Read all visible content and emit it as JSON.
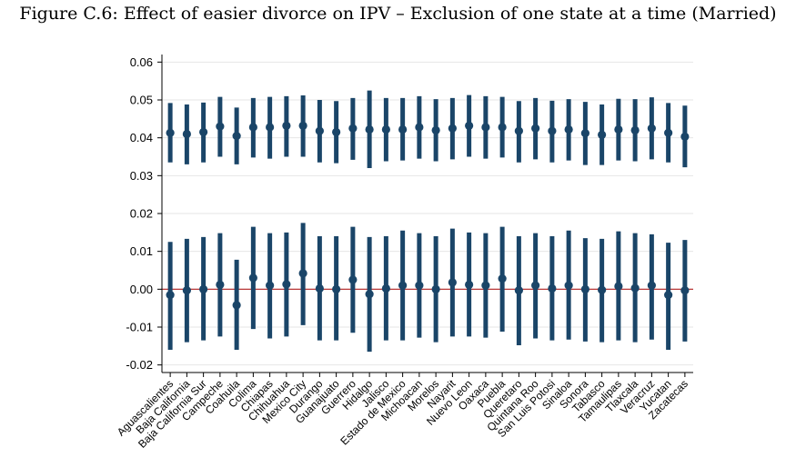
{
  "figure": {
    "title": "Figure C.6: Effect of easier divorce on IPV – Exclusion of one state at a time (Married)"
  },
  "chart_data": {
    "type": "errorbar",
    "title": "Figure C.6: Effect of easier divorce on IPV – Exclusion of one state at a time (Married)",
    "xlabel": "",
    "ylabel": "",
    "ylim": [
      -0.022,
      0.062
    ],
    "yticks": [
      -0.02,
      -0.01,
      0.0,
      0.01,
      0.02,
      0.03,
      0.04,
      0.05,
      0.06
    ],
    "ytick_labels": [
      "-0.02",
      "-0.01",
      "0.00",
      "0.01",
      "0.02",
      "0.03",
      "0.04",
      "0.05",
      "0.06"
    ],
    "reference_line": 0.0,
    "grid": true,
    "categories": [
      "Aguascalientes",
      "Baja California",
      "Baja California Sur",
      "Campeche",
      "Coahuila",
      "Colima",
      "Chiapas",
      "Chihuahua",
      "Mexico City",
      "Durango",
      "Guanajuato",
      "Guerrero",
      "Hidalgo",
      "Jalisco",
      "Estado de Mexico",
      "Michoacan",
      "Morelos",
      "Nayarit",
      "Nuevo Leon",
      "Oaxaca",
      "Puebla",
      "Queretaro",
      "Quintana Roo",
      "San Luis Potosi",
      "Sinaloa",
      "Sonora",
      "Tabasco",
      "Tamaulipas",
      "Tlaxcala",
      "Veracruz",
      "Yucatan",
      "Zacatecas"
    ],
    "series": [
      {
        "point": [
          0.0413,
          0.041,
          0.0415,
          0.043,
          0.0405,
          0.0428,
          0.0428,
          0.0432,
          0.0432,
          0.0418,
          0.0415,
          0.0425,
          0.0422,
          0.0422,
          0.0422,
          0.0428,
          0.042,
          0.0425,
          0.0432,
          0.0428,
          0.0428,
          0.0418,
          0.0425,
          0.0418,
          0.0422,
          0.0412,
          0.0408,
          0.0422,
          0.042,
          0.0425,
          0.0413,
          0.0403
        ],
        "lower": [
          0.0335,
          0.033,
          0.0335,
          0.035,
          0.033,
          0.0348,
          0.0345,
          0.035,
          0.035,
          0.0335,
          0.0333,
          0.0342,
          0.032,
          0.0338,
          0.034,
          0.0345,
          0.0338,
          0.0343,
          0.035,
          0.0345,
          0.0348,
          0.0335,
          0.0343,
          0.0335,
          0.034,
          0.0328,
          0.0328,
          0.034,
          0.0338,
          0.0343,
          0.0335,
          0.0322
        ],
        "upper": [
          0.0492,
          0.0488,
          0.0493,
          0.0508,
          0.048,
          0.0505,
          0.0508,
          0.051,
          0.0512,
          0.05,
          0.0497,
          0.0505,
          0.0525,
          0.0505,
          0.0505,
          0.051,
          0.0502,
          0.0505,
          0.0513,
          0.051,
          0.0508,
          0.0497,
          0.0505,
          0.0498,
          0.0502,
          0.0495,
          0.0488,
          0.0503,
          0.0502,
          0.0507,
          0.0492,
          0.0485
        ]
      },
      {
        "point": [
          -0.0015,
          -0.0003,
          0.0,
          0.0012,
          -0.0042,
          0.003,
          0.001,
          0.0013,
          0.0042,
          0.0002,
          0.0,
          0.0025,
          -0.0013,
          0.0002,
          0.001,
          0.001,
          0.0,
          0.0018,
          0.0012,
          0.001,
          0.0028,
          -0.0003,
          0.001,
          0.0002,
          0.001,
          0.0,
          -0.0002,
          0.0008,
          0.0003,
          0.001,
          -0.0015,
          -0.0003
        ],
        "lower": [
          -0.016,
          -0.014,
          -0.0135,
          -0.0125,
          -0.016,
          -0.0105,
          -0.013,
          -0.0125,
          -0.0095,
          -0.0135,
          -0.0135,
          -0.0115,
          -0.0165,
          -0.0135,
          -0.0135,
          -0.0128,
          -0.014,
          -0.0125,
          -0.0125,
          -0.0128,
          -0.0112,
          -0.0148,
          -0.013,
          -0.0135,
          -0.0133,
          -0.0138,
          -0.014,
          -0.0135,
          -0.014,
          -0.0133,
          -0.016,
          -0.0138
        ],
        "upper": [
          0.0125,
          0.0133,
          0.0138,
          0.0148,
          0.0078,
          0.0165,
          0.0148,
          0.015,
          0.0175,
          0.014,
          0.014,
          0.0165,
          0.0138,
          0.014,
          0.0155,
          0.0148,
          0.014,
          0.016,
          0.015,
          0.0148,
          0.0165,
          0.014,
          0.0148,
          0.014,
          0.0155,
          0.0135,
          0.0133,
          0.0153,
          0.0148,
          0.0145,
          0.0123,
          0.013
        ]
      }
    ],
    "colors": {
      "marker": "#1a4568",
      "reference_line": "#b22222",
      "grid": "#e6e6e6",
      "axis": "#000000"
    }
  }
}
